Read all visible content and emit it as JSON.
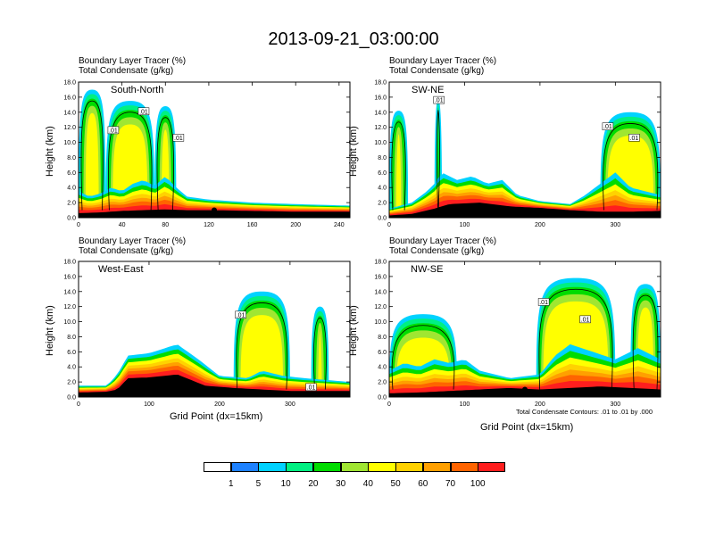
{
  "main_title": "2013-09-21_03:00:00",
  "colorbar": {
    "colors": [
      "#ffffff",
      "#1e82ff",
      "#00d2ff",
      "#00f082",
      "#00dc00",
      "#a0e632",
      "#ffff00",
      "#ffd200",
      "#ffa000",
      "#ff6400",
      "#ff1e1e"
    ],
    "tick_labels": [
      "1",
      "5",
      "10",
      "20",
      "30",
      "40",
      "50",
      "60",
      "70",
      "100"
    ]
  },
  "contour_note": "Total Condensate Contours: .01 to .01 by .000",
  "chart_data": [
    {
      "type": "heatmap",
      "region": "South-North",
      "subtitle_1": "Boundary Layer Tracer   (%)",
      "subtitle_2": "Total Condensate   (g/kg)",
      "ylabel": "Height (km)",
      "xlabel": "",
      "xlim": [
        0,
        250
      ],
      "ylim": [
        0,
        18
      ],
      "xticks": [
        "0",
        "40",
        "80",
        "120",
        "160",
        "200",
        "240"
      ],
      "xtick_values": [
        0,
        40,
        80,
        120,
        160,
        200,
        240
      ],
      "yticks": [
        "0.0",
        "2.0",
        "4.0",
        "6.0",
        "8.0",
        "10.0",
        "12.0",
        "14.0",
        "16.0",
        "18.0"
      ],
      "ytick_values": [
        0,
        2,
        4,
        6,
        8,
        10,
        12,
        14,
        16,
        18
      ],
      "terrain": [
        [
          0,
          0.6
        ],
        [
          20,
          0.7
        ],
        [
          40,
          0.9
        ],
        [
          60,
          1.0
        ],
        [
          80,
          1.1
        ],
        [
          100,
          1.0
        ],
        [
          120,
          1.0
        ],
        [
          160,
          0.9
        ],
        [
          200,
          0.8
        ],
        [
          250,
          0.8
        ]
      ],
      "bl_top": [
        [
          0,
          3.5
        ],
        [
          10,
          2.8
        ],
        [
          20,
          3.2
        ],
        [
          30,
          4.0
        ],
        [
          40,
          3.5
        ],
        [
          50,
          4.5
        ],
        [
          60,
          5.0
        ],
        [
          70,
          4.2
        ],
        [
          80,
          5.5
        ],
        [
          90,
          4.0
        ],
        [
          100,
          2.8
        ],
        [
          120,
          2.4
        ],
        [
          160,
          2.0
        ],
        [
          200,
          1.8
        ],
        [
          250,
          1.6
        ]
      ],
      "plumes": [
        {
          "x": [
            0,
            25
          ],
          "top": 17.0,
          "label": ""
        },
        {
          "x": [
            25,
            70
          ],
          "top": 15.5,
          "label": ".01"
        },
        {
          "x": [
            70,
            90
          ],
          "top": 14.8,
          "label": ".01"
        }
      ],
      "contour_labels": [
        {
          "text": ".01",
          "x": 60,
          "y": 14.0
        },
        {
          "text": ".01",
          "x": 32,
          "y": 11.5
        },
        {
          "text": ".01",
          "x": 92,
          "y": 10.5
        }
      ],
      "markers": [
        {
          "x": 125,
          "y": 1.0
        }
      ]
    },
    {
      "type": "heatmap",
      "region": "SW-NE",
      "subtitle_1": "Boundary Layer Tracer   (%)",
      "subtitle_2": "Total Condensate   (g/kg)",
      "ylabel": "Height (km)",
      "xlabel": "",
      "xlim": [
        0,
        360
      ],
      "ylim": [
        0,
        18
      ],
      "xticks": [
        "0",
        "100",
        "200",
        "300"
      ],
      "xtick_values": [
        0,
        100,
        200,
        300
      ],
      "yticks": [
        "0.0",
        "2.0",
        "4.0",
        "6.0",
        "8.0",
        "10.0",
        "12.0",
        "14.0",
        "16.0",
        "18.0"
      ],
      "ytick_values": [
        0,
        2,
        4,
        6,
        8,
        10,
        12,
        14,
        16,
        18
      ],
      "terrain": [
        [
          0,
          0.3
        ],
        [
          30,
          0.5
        ],
        [
          60,
          1.2
        ],
        [
          80,
          1.8
        ],
        [
          120,
          2.0
        ],
        [
          160,
          1.5
        ],
        [
          200,
          1.3
        ],
        [
          240,
          1.0
        ],
        [
          280,
          0.8
        ],
        [
          320,
          0.8
        ],
        [
          360,
          0.9
        ]
      ],
      "bl_top": [
        [
          0,
          1.2
        ],
        [
          30,
          2.0
        ],
        [
          50,
          3.5
        ],
        [
          60,
          4.5
        ],
        [
          70,
          6.0
        ],
        [
          90,
          5.0
        ],
        [
          110,
          5.5
        ],
        [
          130,
          4.5
        ],
        [
          150,
          5.0
        ],
        [
          170,
          3.0
        ],
        [
          200,
          2.2
        ],
        [
          240,
          1.8
        ],
        [
          260,
          3.0
        ],
        [
          280,
          4.5
        ],
        [
          300,
          6.0
        ],
        [
          320,
          4.0
        ],
        [
          360,
          3.0
        ]
      ],
      "plumes": [
        {
          "x": [
            0,
            25
          ],
          "top": 14.2,
          "label": ""
        },
        {
          "x": [
            60,
            70
          ],
          "top": 15.8,
          "label": ".01"
        },
        {
          "x": [
            280,
            360
          ],
          "top": 14.0,
          "label": ".01"
        }
      ],
      "contour_labels": [
        {
          "text": ".01",
          "x": 66,
          "y": 15.5
        },
        {
          "text": ".01",
          "x": 290,
          "y": 12.0
        },
        {
          "text": ".01",
          "x": 325,
          "y": 10.5
        }
      ],
      "markers": [
        {
          "x": 178,
          "y": 1.0
        }
      ]
    },
    {
      "type": "heatmap",
      "region": "West-East",
      "subtitle_1": "Boundary Layer Tracer   (%)",
      "subtitle_2": "Total Condensate   (g/kg)",
      "ylabel": "Height (km)",
      "xlabel": "Grid Point (dx=15km)",
      "xlim": [
        0,
        385
      ],
      "ylim": [
        0,
        18
      ],
      "xticks": [
        "0",
        "100",
        "200",
        "300"
      ],
      "xtick_values": [
        0,
        100,
        200,
        300
      ],
      "yticks": [
        "0.0",
        "2.0",
        "4.0",
        "6.0",
        "8.0",
        "10.0",
        "12.0",
        "14.0",
        "16.0",
        "18.0"
      ],
      "ytick_values": [
        0,
        2,
        4,
        6,
        8,
        10,
        12,
        14,
        16,
        18
      ],
      "terrain": [
        [
          0,
          0.6
        ],
        [
          40,
          0.7
        ],
        [
          55,
          1.0
        ],
        [
          70,
          2.5
        ],
        [
          100,
          2.6
        ],
        [
          140,
          3.0
        ],
        [
          180,
          1.5
        ],
        [
          220,
          1.2
        ],
        [
          260,
          1.0
        ],
        [
          300,
          0.8
        ],
        [
          385,
          0.8
        ]
      ],
      "bl_top": [
        [
          0,
          1.5
        ],
        [
          40,
          1.5
        ],
        [
          55,
          3.0
        ],
        [
          70,
          5.5
        ],
        [
          100,
          5.8
        ],
        [
          140,
          7.0
        ],
        [
          170,
          5.0
        ],
        [
          200,
          2.8
        ],
        [
          240,
          2.5
        ],
        [
          260,
          3.5
        ],
        [
          290,
          2.8
        ],
        [
          320,
          2.5
        ],
        [
          385,
          2.0
        ]
      ],
      "plumes": [
        {
          "x": [
            220,
            300
          ],
          "top": 14.0,
          "label": ".01"
        },
        {
          "x": [
            330,
            355
          ],
          "top": 12.0,
          "label": ""
        }
      ],
      "contour_labels": [
        {
          "text": ".01",
          "x": 230,
          "y": 10.8
        },
        {
          "text": ".01",
          "x": 330,
          "y": 1.2
        }
      ],
      "markers": [
        {
          "x": 190,
          "y": 1.0
        }
      ]
    },
    {
      "type": "heatmap",
      "region": "NW-SE",
      "subtitle_1": "Boundary Layer Tracer   (%)",
      "subtitle_2": "Total Condensate   (g/kg)",
      "ylabel": "Height (km)",
      "xlabel": "Grid Point (dx=15km)",
      "xlim": [
        0,
        360
      ],
      "ylim": [
        0,
        18
      ],
      "xticks": [
        "0",
        "100",
        "200",
        "300"
      ],
      "xtick_values": [
        0,
        100,
        200,
        300
      ],
      "yticks": [
        "0.0",
        "2.0",
        "4.0",
        "6.0",
        "8.0",
        "10.0",
        "12.0",
        "14.0",
        "16.0",
        "18.0"
      ],
      "ytick_values": [
        0,
        2,
        4,
        6,
        8,
        10,
        12,
        14,
        16,
        18
      ],
      "terrain": [
        [
          0,
          0.5
        ],
        [
          40,
          0.6
        ],
        [
          80,
          0.8
        ],
        [
          120,
          1.0
        ],
        [
          160,
          1.2
        ],
        [
          200,
          1.0
        ],
        [
          240,
          1.2
        ],
        [
          280,
          1.4
        ],
        [
          320,
          1.2
        ],
        [
          360,
          1.0
        ]
      ],
      "bl_top": [
        [
          0,
          3.5
        ],
        [
          20,
          4.5
        ],
        [
          40,
          4.0
        ],
        [
          60,
          5.0
        ],
        [
          80,
          4.5
        ],
        [
          100,
          5.0
        ],
        [
          120,
          3.5
        ],
        [
          160,
          2.5
        ],
        [
          200,
          3.0
        ],
        [
          220,
          5.5
        ],
        [
          240,
          7.0
        ],
        [
          270,
          6.0
        ],
        [
          300,
          5.0
        ],
        [
          330,
          6.5
        ],
        [
          360,
          5.0
        ]
      ],
      "plumes": [
        {
          "x": [
            0,
            90
          ],
          "top": 11.0,
          "label": ""
        },
        {
          "x": [
            195,
            300
          ],
          "top": 15.8,
          "label": ".01"
        },
        {
          "x": [
            320,
            360
          ],
          "top": 15.0,
          "label": ""
        }
      ],
      "contour_labels": [
        {
          "text": ".01",
          "x": 205,
          "y": 12.5
        },
        {
          "text": ".01",
          "x": 260,
          "y": 10.2
        }
      ],
      "markers": [
        {
          "x": 180,
          "y": 1.0
        }
      ]
    }
  ]
}
